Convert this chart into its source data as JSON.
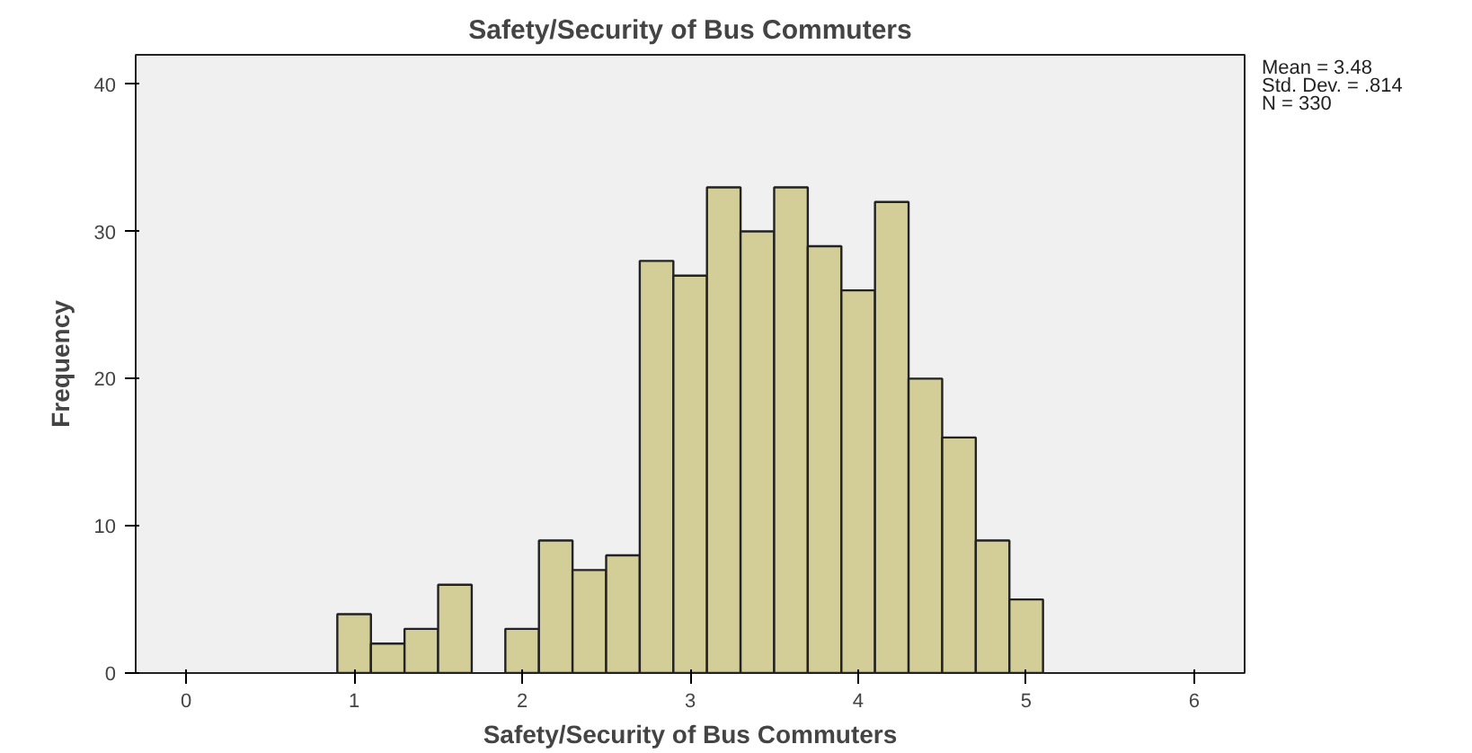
{
  "chart_data": {
    "type": "histogram",
    "title": "Safety/Security of Bus Commuters",
    "xlabel": "Safety/Security of Bus Commuters",
    "ylabel": "Frequency",
    "bins": [
      0.9,
      1.1,
      1.3,
      1.5,
      1.7,
      1.9,
      2.1,
      2.3,
      2.5,
      2.7,
      2.9,
      3.1,
      3.3,
      3.5,
      3.7,
      3.9,
      4.1,
      4.3,
      4.5,
      4.7,
      4.9,
      5.1
    ],
    "values": [
      4,
      2,
      3,
      6,
      0,
      3,
      9,
      7,
      8,
      28,
      27,
      33,
      30,
      33,
      29,
      26,
      32,
      20,
      16,
      9,
      5
    ],
    "color": "#d3ce97",
    "xlim": [
      -0.3,
      6.3
    ],
    "xticks": [
      0,
      1,
      2,
      3,
      4,
      5,
      6
    ],
    "ylim": [
      0,
      42
    ],
    "yticks": [
      0,
      10,
      20,
      30,
      40
    ],
    "grid": false,
    "annotations": [
      "Mean = 3.48",
      "Std. Dev. = .814",
      "N = 330"
    ]
  }
}
